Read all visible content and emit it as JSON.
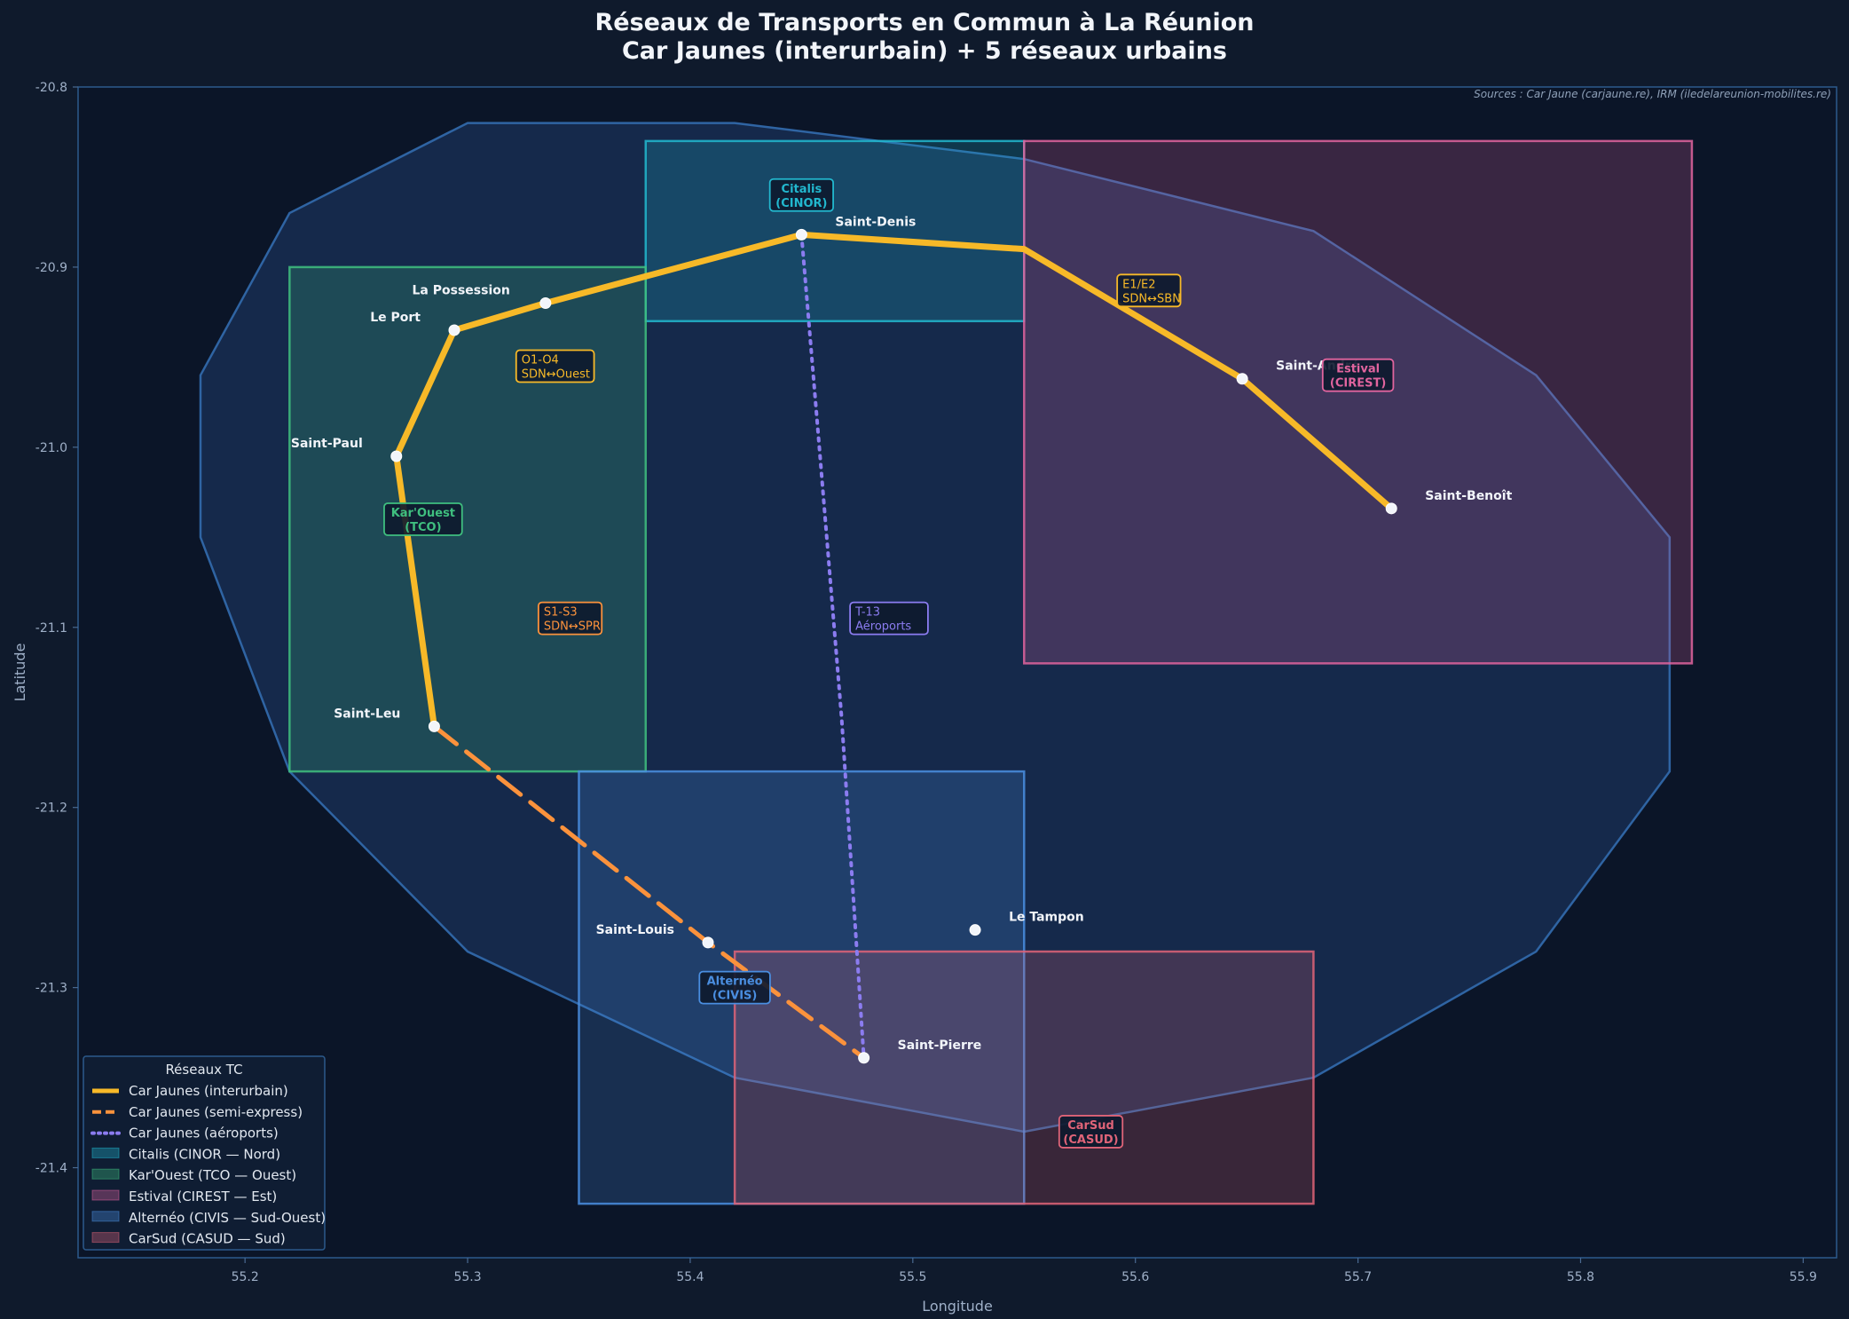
{
  "title_line1": "Réseaux de Transports en Commun à La Réunion",
  "title_line2": "Car Jaunes (interurbain) + 5 réseaux urbains",
  "chart_data": {
    "type": "map",
    "xlabel": "Longitude",
    "ylabel": "Latitude",
    "xlim": [
      55.125,
      55.915
    ],
    "ylim": [
      -21.45,
      -20.8
    ],
    "xticks": [
      55.2,
      55.3,
      55.4,
      55.5,
      55.6,
      55.7,
      55.8,
      55.9
    ],
    "yticks": [
      -20.8,
      -20.9,
      -21.0,
      -21.1,
      -21.2,
      -21.3,
      -21.4
    ],
    "xtick_labels": [
      "55.2",
      "55.3",
      "55.4",
      "55.5",
      "55.6",
      "55.7",
      "55.8",
      "55.9"
    ],
    "ytick_labels": [
      "-20.8",
      "-20.9",
      "-21.0",
      "-21.1",
      "-21.2",
      "-21.3",
      "-21.4"
    ],
    "source": "Sources : Car Jaune (carjaune.re), IRM (iledelareunion-mobilites.re)",
    "island_outline": [
      [
        55.18,
        -20.96
      ],
      [
        55.22,
        -20.87
      ],
      [
        55.3,
        -20.82
      ],
      [
        55.42,
        -20.82
      ],
      [
        55.55,
        -20.84
      ],
      [
        55.68,
        -20.88
      ],
      [
        55.78,
        -20.96
      ],
      [
        55.84,
        -21.05
      ],
      [
        55.84,
        -21.18
      ],
      [
        55.78,
        -21.28
      ],
      [
        55.68,
        -21.35
      ],
      [
        55.55,
        -21.38
      ],
      [
        55.42,
        -21.35
      ],
      [
        55.3,
        -21.28
      ],
      [
        55.22,
        -21.18
      ],
      [
        55.18,
        -21.05
      ]
    ],
    "networks": [
      {
        "id": "citalis",
        "label_line1": "Citalis",
        "label_line2": "(CINOR)",
        "legend": "Citalis (CINOR — Nord)",
        "lon": [
          55.38,
          55.55
        ],
        "lat": [
          -20.93,
          -20.83
        ],
        "color": "#22b8cf",
        "label_pos": [
          55.45,
          -20.86
        ]
      },
      {
        "id": "karouest",
        "label_line1": "Kar'Ouest",
        "label_line2": "(TCO)",
        "legend": "Kar'Ouest (TCO — Ouest)",
        "lon": [
          55.22,
          55.38
        ],
        "lat": [
          -21.18,
          -20.9
        ],
        "color": "#3fbf7f",
        "label_pos": [
          55.28,
          -21.04
        ]
      },
      {
        "id": "estival",
        "label_line1": "Estival",
        "label_line2": "(CIREST)",
        "legend": "Estival (CIREST — Est)",
        "lon": [
          55.55,
          55.85
        ],
        "lat": [
          -21.12,
          -20.83
        ],
        "color": "#e0649e",
        "label_pos": [
          55.7,
          -20.96
        ]
      },
      {
        "id": "alterneo",
        "label_line1": "Alternéo",
        "label_line2": "(CIVIS)",
        "legend": "Alternéo (CIVIS — Sud-Ouest)",
        "lon": [
          55.35,
          55.55
        ],
        "lat": [
          -21.42,
          -21.18
        ],
        "color": "#4a8ee0",
        "label_pos": [
          55.42,
          -21.3
        ]
      },
      {
        "id": "carsud",
        "label_line1": "CarSud",
        "label_line2": "(CASUD)",
        "legend": "CarSud (CASUD — Sud)",
        "lon": [
          55.42,
          55.68
        ],
        "lat": [
          -21.42,
          -21.28
        ],
        "color": "#e06478",
        "label_pos": [
          55.58,
          -21.38
        ]
      }
    ],
    "cities": [
      {
        "name": "Saint-Denis",
        "lon": 55.45,
        "lat": -20.882
      },
      {
        "name": "La Possession",
        "lon": 55.335,
        "lat": -20.92
      },
      {
        "name": "Le Port",
        "lon": 55.294,
        "lat": -20.935
      },
      {
        "name": "Saint-Paul",
        "lon": 55.268,
        "lat": -21.005
      },
      {
        "name": "Saint-Leu",
        "lon": 55.285,
        "lat": -21.155
      },
      {
        "name": "Saint-Louis",
        "lon": 55.408,
        "lat": -21.275
      },
      {
        "name": "Saint-Pierre",
        "lon": 55.478,
        "lat": -21.339
      },
      {
        "name": "Le Tampon",
        "lon": 55.528,
        "lat": -21.268
      },
      {
        "name": "Saint-André",
        "lon": 55.648,
        "lat": -20.962
      },
      {
        "name": "Saint-Benoît",
        "lon": 55.715,
        "lat": -21.034
      }
    ],
    "series": [
      {
        "name": "Car Jaunes (interurbain)",
        "color": "#f7b928",
        "style": "solid",
        "points": [
          [
            55.285,
            -21.155
          ],
          [
            55.268,
            -21.005
          ],
          [
            55.294,
            -20.935
          ],
          [
            55.335,
            -20.92
          ],
          [
            55.45,
            -20.882
          ],
          [
            55.55,
            -20.89
          ],
          [
            55.648,
            -20.962
          ],
          [
            55.715,
            -21.034
          ]
        ]
      },
      {
        "name": "Car Jaunes (semi-express)",
        "color": "#fb923c",
        "style": "dashed",
        "points": [
          [
            55.285,
            -21.155
          ],
          [
            55.408,
            -21.275
          ],
          [
            55.478,
            -21.339
          ]
        ]
      },
      {
        "name": "Car Jaunes (aéroports)",
        "color": "#8b7cf0",
        "style": "dotted",
        "points": [
          [
            55.45,
            -20.882
          ],
          [
            55.458,
            -21.0
          ],
          [
            55.468,
            -21.15
          ],
          [
            55.478,
            -21.339
          ]
        ]
      }
    ],
    "route_labels": [
      {
        "line1": "O1-O4",
        "line2": "SDN↔Ouest",
        "color": "#f7b928",
        "lon": 55.325,
        "lat": -20.955
      },
      {
        "line1": "S1-S3",
        "line2": "SDN↔SPR",
        "color": "#fb923c",
        "lon": 55.335,
        "lat": -21.095
      },
      {
        "line1": "T-13",
        "line2": "Aéroports",
        "color": "#8b7cf0",
        "lon": 55.475,
        "lat": -21.095
      },
      {
        "line1": "E1/E2",
        "line2": "SDN↔SBN",
        "color": "#f7b928",
        "lon": 55.595,
        "lat": -20.913
      }
    ],
    "legend_title": "Réseaux TC",
    "legend_position": "lower-left"
  }
}
